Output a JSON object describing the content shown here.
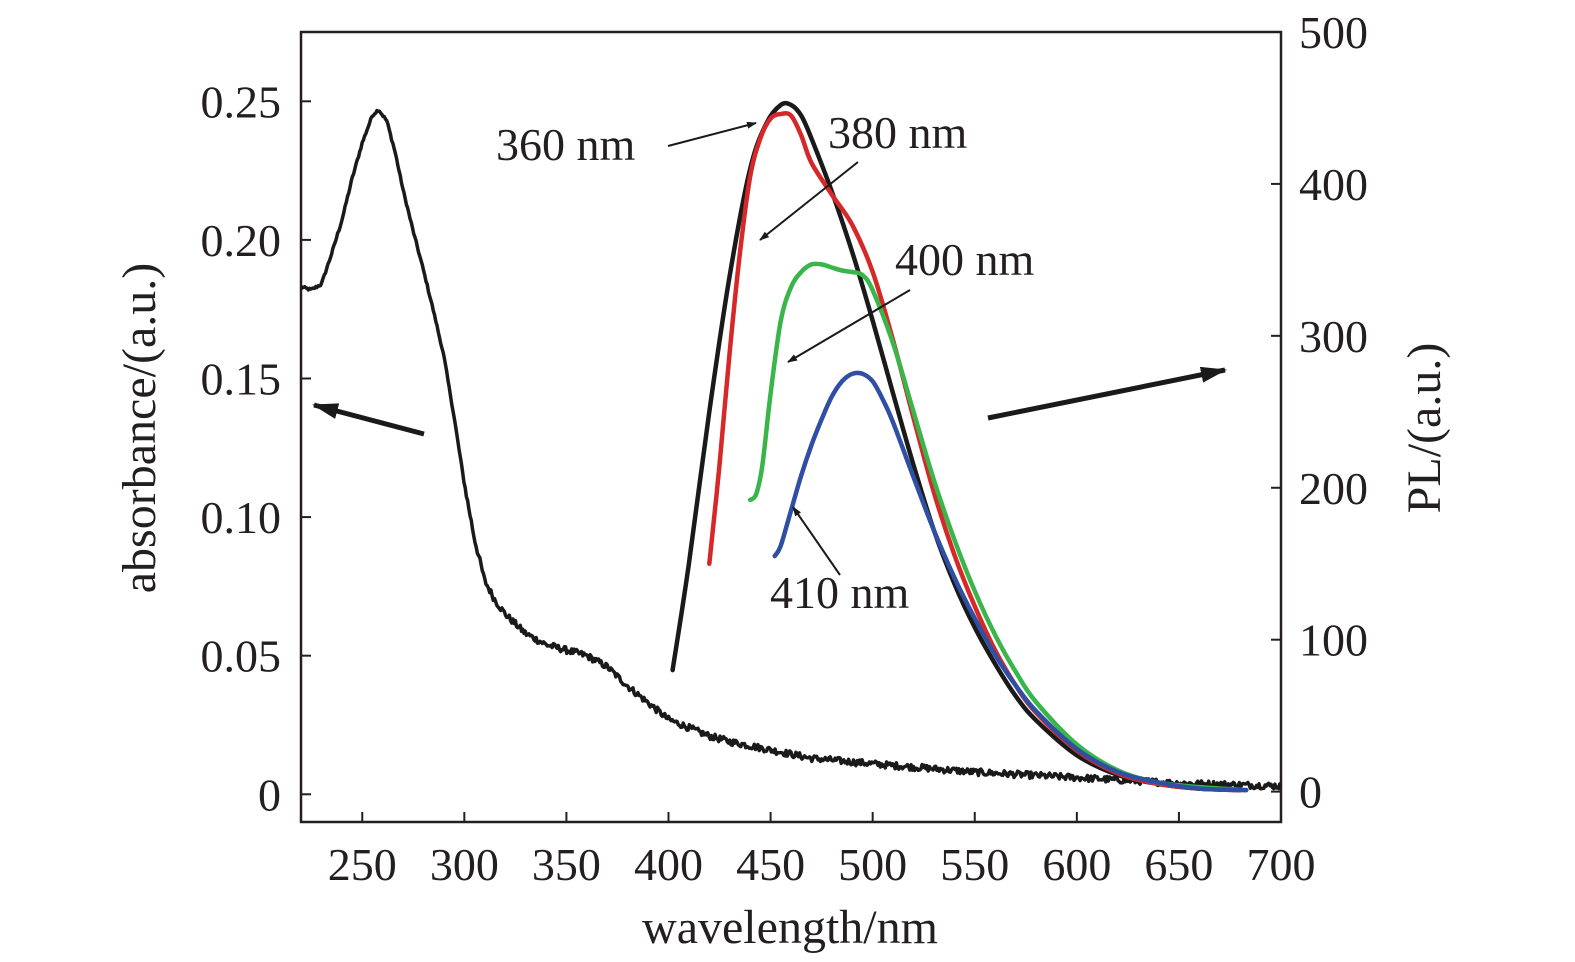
{
  "chart_data": {
    "type": "line",
    "xlabel": "wavelength/nm",
    "ylabel_left": "absorbance/(a.u.)",
    "ylabel_right": "PL/(a.u.)",
    "xlim": [
      220,
      700
    ],
    "ylim_left": [
      -0.01,
      0.275
    ],
    "ylim_right": [
      -20,
      500
    ],
    "x_ticks": [
      250,
      300,
      350,
      400,
      450,
      500,
      550,
      600,
      650,
      700
    ],
    "x_tick_labels": [
      "250",
      "300",
      "350",
      "400",
      "450",
      "500",
      "550",
      "600",
      "650",
      "700"
    ],
    "y_left_ticks": [
      0,
      0.05,
      0.1,
      0.15,
      0.2,
      0.25
    ],
    "y_left_tick_labels": [
      "0",
      "0.05",
      "0.10",
      "0.15",
      "0.20",
      "0.25"
    ],
    "y_right_ticks": [
      0,
      100,
      200,
      300,
      400,
      500
    ],
    "y_right_tick_labels": [
      "0",
      "100",
      "200",
      "300",
      "400",
      "500"
    ],
    "grid": false,
    "series": [
      {
        "axis": "left",
        "color": "#1a1a1a",
        "noise": 0.0012,
        "x": [
          220,
          225,
          230,
          235,
          240,
          245,
          250,
          255,
          258,
          262,
          266,
          270,
          275,
          280,
          285,
          290,
          295,
          300,
          305,
          310,
          315,
          320,
          330,
          340,
          350,
          360,
          370,
          380,
          390,
          400,
          410,
          420,
          430,
          450,
          470,
          500,
          550,
          600,
          650,
          700
        ],
        "y": [
          0.183,
          0.182,
          0.184,
          0.195,
          0.207,
          0.222,
          0.235,
          0.245,
          0.247,
          0.243,
          0.232,
          0.218,
          0.203,
          0.189,
          0.174,
          0.158,
          0.136,
          0.112,
          0.092,
          0.077,
          0.07,
          0.065,
          0.058,
          0.054,
          0.052,
          0.05,
          0.046,
          0.039,
          0.033,
          0.027,
          0.024,
          0.021,
          0.019,
          0.016,
          0.013,
          0.011,
          0.008,
          0.006,
          0.004,
          0.003
        ]
      },
      {
        "axis": "right",
        "color": "#1a1a1a",
        "x": [
          402,
          410,
          420,
          430,
          440,
          448,
          455,
          460,
          465,
          470,
          480,
          490,
          500,
          510,
          520,
          530,
          540,
          550,
          560,
          570,
          580,
          600,
          620,
          640,
          660,
          680
        ],
        "y": [
          80,
          150,
          250,
          340,
          410,
          440,
          452,
          452,
          445,
          430,
          395,
          355,
          310,
          262,
          215,
          172,
          137,
          108,
          84,
          63,
          47,
          24,
          11,
          5,
          2,
          1
        ]
      },
      {
        "axis": "right",
        "color": "#d62829",
        "x": [
          420,
          425,
          430,
          435,
          440,
          445,
          450,
          455,
          460,
          465,
          470,
          480,
          490,
          500,
          510,
          520,
          530,
          540,
          550,
          560,
          570,
          580,
          600,
          620,
          640,
          660,
          680
        ],
        "y": [
          150,
          215,
          290,
          355,
          405,
          430,
          443,
          446,
          445,
          432,
          414,
          393,
          373,
          342,
          297,
          246,
          197,
          156,
          122,
          93,
          70,
          52,
          27,
          12,
          5,
          2,
          1
        ]
      },
      {
        "axis": "right",
        "color": "#39b54a",
        "x": [
          440,
          443,
          446,
          450,
          455,
          460,
          465,
          470,
          475,
          480,
          485,
          490,
          495,
          500,
          510,
          520,
          530,
          540,
          550,
          560,
          570,
          580,
          600,
          620,
          640,
          660,
          683
        ],
        "y": [
          192,
          196,
          215,
          262,
          310,
          332,
          342,
          347,
          347,
          345,
          343,
          342,
          340,
          330,
          295,
          250,
          205,
          166,
          132,
          103,
          79,
          59,
          31,
          14,
          6,
          3,
          1
        ]
      },
      {
        "axis": "right",
        "color": "#2e4fa3",
        "x": [
          452,
          455,
          460,
          465,
          470,
          475,
          480,
          485,
          490,
          495,
          500,
          505,
          510,
          520,
          530,
          540,
          550,
          560,
          570,
          580,
          600,
          620,
          640,
          660,
          683
        ],
        "y": [
          155,
          162,
          185,
          208,
          228,
          245,
          260,
          270,
          275,
          275,
          270,
          258,
          243,
          207,
          172,
          141,
          114,
          90,
          70,
          53,
          28,
          13,
          6,
          2,
          1
        ]
      }
    ],
    "annotations": [
      {
        "text": "360 nm"
      },
      {
        "text": "380 nm"
      },
      {
        "text": "400 nm"
      },
      {
        "text": "410 nm"
      }
    ]
  }
}
